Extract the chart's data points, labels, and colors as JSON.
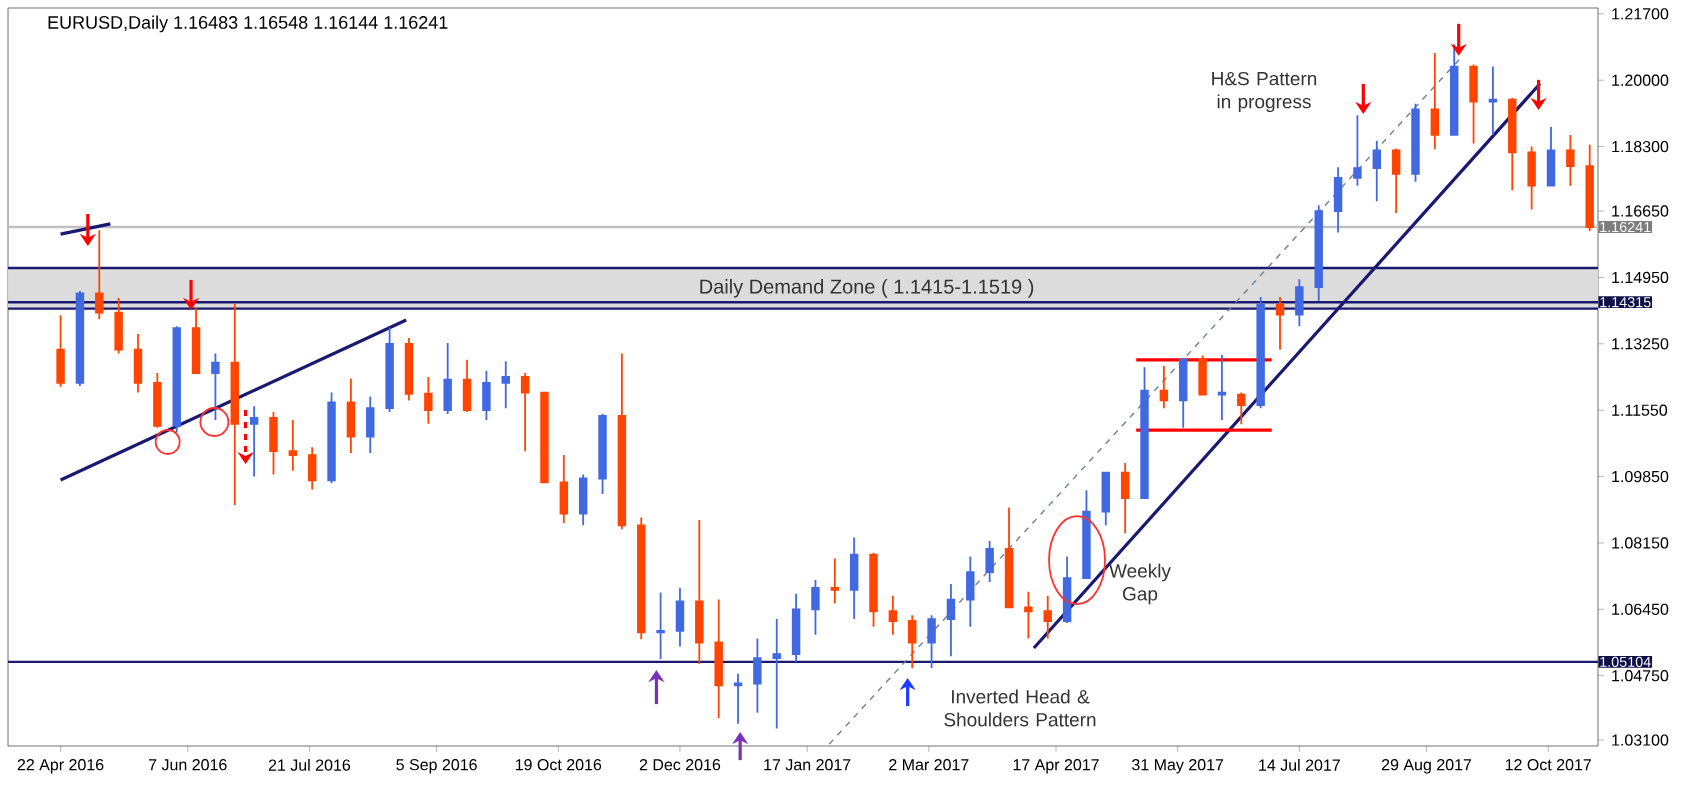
{
  "chart_data": {
    "type": "candlestick",
    "title": "EURUSD,Daily 1.16483 1.16548 1.16144 1.16241",
    "x": [
      "2016-04-22",
      "2016-04-29",
      "2016-05-06",
      "2016-05-13",
      "2016-05-20",
      "2016-05-27",
      "2016-06-03",
      "2016-06-10",
      "2016-06-17",
      "2016-06-24",
      "2016-07-01",
      "2016-07-08",
      "2016-07-15",
      "2016-07-22",
      "2016-07-29",
      "2016-08-05",
      "2016-08-12",
      "2016-08-19",
      "2016-08-26",
      "2016-09-02",
      "2016-09-09",
      "2016-09-16",
      "2016-09-23",
      "2016-09-30",
      "2016-10-07",
      "2016-10-14",
      "2016-10-21",
      "2016-10-28",
      "2016-11-04",
      "2016-11-11",
      "2016-11-18",
      "2016-11-25",
      "2016-12-02",
      "2016-12-09",
      "2016-12-16",
      "2016-12-23",
      "2016-12-30",
      "2017-01-06",
      "2017-01-13",
      "2017-01-20",
      "2017-01-27",
      "2017-02-03",
      "2017-02-10",
      "2017-02-17",
      "2017-02-24",
      "2017-03-03",
      "2017-03-10",
      "2017-03-17",
      "2017-03-24",
      "2017-03-31",
      "2017-04-07",
      "2017-04-14",
      "2017-04-21",
      "2017-04-28",
      "2017-05-05",
      "2017-05-12",
      "2017-05-19",
      "2017-05-26",
      "2017-06-02",
      "2017-06-09",
      "2017-06-16",
      "2017-06-23",
      "2017-06-30",
      "2017-07-07",
      "2017-07-14",
      "2017-07-21",
      "2017-07-28",
      "2017-08-04",
      "2017-08-11",
      "2017-08-18",
      "2017-08-25",
      "2017-09-01",
      "2017-09-08",
      "2017-09-15",
      "2017-09-22",
      "2017-09-29",
      "2017-10-06",
      "2017-10-13",
      "2017-10-20",
      "2017-10-27"
    ],
    "ohlc": [
      [
        1.131,
        1.1398,
        1.1215,
        1.1225
      ],
      [
        1.1225,
        1.146,
        1.1217,
        1.1454
      ],
      [
        1.1454,
        1.1616,
        1.1388,
        1.1405
      ],
      [
        1.1405,
        1.1442,
        1.13,
        1.131
      ],
      [
        1.131,
        1.135,
        1.12,
        1.1225
      ],
      [
        1.1225,
        1.125,
        1.111,
        1.1115
      ],
      [
        1.1115,
        1.137,
        1.1098,
        1.1365
      ],
      [
        1.1365,
        1.1416,
        1.125,
        1.125
      ],
      [
        1.125,
        1.13,
        1.113,
        1.1277
      ],
      [
        1.1277,
        1.1427,
        1.0912,
        1.112
      ],
      [
        1.112,
        1.1165,
        1.0985,
        1.1135
      ],
      [
        1.1135,
        1.115,
        1.099,
        1.105
      ],
      [
        1.105,
        1.113,
        1.1,
        1.104
      ],
      [
        1.104,
        1.106,
        1.0952,
        1.0975
      ],
      [
        1.0975,
        1.12,
        1.0968,
        1.1175
      ],
      [
        1.1175,
        1.1236,
        1.1045,
        1.1087
      ],
      [
        1.1087,
        1.119,
        1.1045,
        1.116
      ],
      [
        1.116,
        1.1366,
        1.115,
        1.1325
      ],
      [
        1.1325,
        1.134,
        1.118,
        1.1197
      ],
      [
        1.1197,
        1.124,
        1.112,
        1.1155
      ],
      [
        1.1155,
        1.1327,
        1.1145,
        1.1233
      ],
      [
        1.1233,
        1.1284,
        1.115,
        1.1155
      ],
      [
        1.1155,
        1.1256,
        1.113,
        1.1225
      ],
      [
        1.1225,
        1.128,
        1.116,
        1.124
      ],
      [
        1.124,
        1.125,
        1.105,
        1.12
      ],
      [
        1.12,
        1.12,
        1.097,
        1.097
      ],
      [
        1.097,
        1.104,
        1.0866,
        1.089
      ],
      [
        1.089,
        1.099,
        1.086,
        1.098
      ],
      [
        1.098,
        1.1146,
        1.094,
        1.114
      ],
      [
        1.114,
        1.13,
        1.085,
        1.086
      ],
      [
        1.086,
        1.088,
        1.0568,
        1.0586
      ],
      [
        1.0586,
        1.0688,
        1.0518,
        1.059
      ],
      [
        1.059,
        1.07,
        1.055,
        1.0665
      ],
      [
        1.0665,
        1.0874,
        1.0505,
        1.056
      ],
      [
        1.056,
        1.067,
        1.0366,
        1.045
      ],
      [
        1.045,
        1.048,
        1.0352,
        1.0455
      ],
      [
        1.0455,
        1.057,
        1.038,
        1.052
      ],
      [
        1.052,
        1.062,
        1.034,
        1.053
      ],
      [
        1.053,
        1.0685,
        1.051,
        1.0645
      ],
      [
        1.0645,
        1.072,
        1.058,
        1.07
      ],
      [
        1.07,
        1.0775,
        1.066,
        1.0695
      ],
      [
        1.0695,
        1.0829,
        1.062,
        1.0785
      ],
      [
        1.0785,
        1.079,
        1.06,
        1.064
      ],
      [
        1.064,
        1.068,
        1.058,
        1.0615
      ],
      [
        1.0615,
        1.063,
        1.0494,
        1.056
      ],
      [
        1.056,
        1.063,
        1.0495,
        1.062
      ],
      [
        1.062,
        1.071,
        1.0525,
        1.067
      ],
      [
        1.067,
        1.078,
        1.06,
        1.074
      ],
      [
        1.074,
        1.082,
        1.0715,
        1.08
      ],
      [
        1.08,
        1.0906,
        1.065,
        1.065
      ],
      [
        1.065,
        1.069,
        1.057,
        1.064
      ],
      [
        1.064,
        1.068,
        1.057,
        1.0615
      ],
      [
        1.0615,
        1.078,
        1.061,
        1.0725
      ],
      [
        1.0725,
        1.095,
        1.0725,
        1.0895
      ],
      [
        1.0895,
        1.0995,
        1.086,
        1.0995
      ],
      [
        1.0995,
        1.102,
        1.084,
        1.093
      ],
      [
        1.093,
        1.1265,
        1.093,
        1.1205
      ],
      [
        1.1205,
        1.1268,
        1.116,
        1.118
      ],
      [
        1.118,
        1.1285,
        1.111,
        1.1285
      ],
      [
        1.1285,
        1.1295,
        1.1195,
        1.1195
      ],
      [
        1.1195,
        1.1296,
        1.113,
        1.12
      ],
      [
        1.1195,
        1.12,
        1.1119,
        1.1168
      ],
      [
        1.1168,
        1.1445,
        1.116,
        1.1425
      ],
      [
        1.1425,
        1.1445,
        1.131,
        1.14
      ],
      [
        1.14,
        1.149,
        1.137,
        1.147
      ],
      [
        1.147,
        1.168,
        1.1435,
        1.1665
      ],
      [
        1.1665,
        1.1777,
        1.161,
        1.175
      ],
      [
        1.175,
        1.191,
        1.173,
        1.1775
      ],
      [
        1.1775,
        1.1845,
        1.169,
        1.182
      ],
      [
        1.182,
        1.1825,
        1.166,
        1.176
      ],
      [
        1.176,
        1.194,
        1.174,
        1.1925
      ],
      [
        1.1925,
        1.207,
        1.1823,
        1.186
      ],
      [
        1.186,
        1.2092,
        1.186,
        1.2035
      ],
      [
        1.2035,
        1.204,
        1.1838,
        1.1945
      ],
      [
        1.1945,
        1.2035,
        1.186,
        1.195
      ],
      [
        1.195,
        1.1955,
        1.1718,
        1.1815
      ],
      [
        1.1815,
        1.183,
        1.1669,
        1.173
      ],
      [
        1.173,
        1.188,
        1.173,
        1.182
      ],
      [
        1.182,
        1.186,
        1.173,
        1.178
      ],
      [
        1.178,
        1.1835,
        1.1614,
        1.1624
      ]
    ],
    "colors": [
      "#ff4500",
      "#4169e1",
      "#ff4500",
      "#ff4500",
      "#ff4500",
      "#ff4500",
      "#4169e1",
      "#ff4500",
      "#4169e1",
      "#ff4500",
      "#4169e1",
      "#ff4500",
      "#ff4500",
      "#ff4500",
      "#4169e1",
      "#ff4500",
      "#4169e1",
      "#4169e1",
      "#ff4500",
      "#ff4500",
      "#4169e1",
      "#ff4500",
      "#4169e1",
      "#4169e1",
      "#ff4500",
      "#ff4500",
      "#ff4500",
      "#4169e1",
      "#4169e1",
      "#ff4500",
      "#ff4500",
      "#4169e1",
      "#4169e1",
      "#ff4500",
      "#ff4500",
      "#4169e1",
      "#4169e1",
      "#4169e1",
      "#4169e1",
      "#4169e1",
      "#ff4500",
      "#4169e1",
      "#ff4500",
      "#ff4500",
      "#ff4500",
      "#4169e1",
      "#4169e1",
      "#4169e1",
      "#4169e1",
      "#ff4500",
      "#ff4500",
      "#ff4500",
      "#4169e1",
      "#4169e1",
      "#4169e1",
      "#ff4500",
      "#4169e1",
      "#ff4500",
      "#4169e1",
      "#ff4500",
      "#4169e1",
      "#ff4500",
      "#4169e1",
      "#ff4500",
      "#4169e1",
      "#4169e1",
      "#4169e1",
      "#4169e1",
      "#4169e1",
      "#ff4500",
      "#4169e1",
      "#ff4500",
      "#4169e1",
      "#ff4500",
      "#4169e1",
      "#ff4500",
      "#ff4500",
      "#4169e1",
      "#ff4500",
      "#ff4500"
    ],
    "series": [
      {
        "type": "line",
        "color": "#191970",
        "x": [
          "2016-04-22",
          "2016-05-10"
        ],
        "values": [
          1.1606,
          1.1632
        ]
      },
      {
        "type": "line",
        "color": "#191970",
        "x": [
          "2016-04-22",
          "2016-08-25"
        ],
        "values": [
          1.0976,
          1.1386
        ]
      },
      {
        "type": "line",
        "color": "#191970",
        "x": [
          "2017-04-09",
          "2017-10-09"
        ],
        "values": [
          1.0546,
          1.1991
        ]
      },
      {
        "type": "line",
        "color": "#708090",
        "line_style": "dashed",
        "x": [
          "2017-01-25",
          "2017-09-11"
        ],
        "values": [
          1.03,
          1.2062
        ]
      },
      {
        "type": "line",
        "color": "#ff0000",
        "x": [
          "2017-05-16",
          "2017-07-04"
        ],
        "values": [
          1.1284,
          1.1284
        ]
      },
      {
        "type": "line",
        "color": "#ff0000",
        "x": [
          "2017-05-16",
          "2017-07-04"
        ],
        "values": [
          1.1104,
          1.1104
        ]
      }
    ],
    "bands": [
      {
        "axis": "y",
        "from": 1.1415,
        "to": 1.1519,
        "label": "Daily Demand Zone ( 1.1415-1.1519 )",
        "color": "#dcdcdc"
      }
    ],
    "ref_lines": [
      {
        "axis": "y",
        "value": 1.16241,
        "label": "1.16241",
        "color": "#c0c0c0"
      },
      {
        "axis": "y",
        "value": 1.14315,
        "label": "1.14315",
        "color": "#191970"
      },
      {
        "axis": "y",
        "value": 1.05104,
        "label": "1.05104",
        "color": "#191970"
      },
      {
        "axis": "y",
        "value": 1.1519,
        "color": "#191970"
      },
      {
        "axis": "y",
        "value": 1.1415,
        "color": "#191970"
      }
    ],
    "annotations": [
      "H&S Pattern in progress",
      "Weekly Gap",
      "Inverted Head & Shoulders Pattern"
    ],
    "xlim": [
      "2016-04-03",
      "2017-10-30"
    ],
    "ylim": [
      1.0295,
      1.2185
    ],
    "xticks": [
      {
        "value": "2016-04-22",
        "label": "22 Apr 2016"
      },
      {
        "value": "2016-06-07",
        "label": "7 Jun 2016"
      },
      {
        "value": "2016-07-21",
        "label": "21 Jul 2016"
      },
      {
        "value": "2016-09-05",
        "label": "5 Sep 2016"
      },
      {
        "value": "2016-10-19",
        "label": "19 Oct 2016"
      },
      {
        "value": "2016-12-02",
        "label": "2 Dec 2016"
      },
      {
        "value": "2017-01-17",
        "label": "17 Jan 2017"
      },
      {
        "value": "2017-03-02",
        "label": "2 Mar 2017"
      },
      {
        "value": "2017-04-17",
        "label": "17 Apr 2017"
      },
      {
        "value": "2017-05-31",
        "label": "31 May 2017"
      },
      {
        "value": "2017-07-14",
        "label": "14 Jul 2017"
      },
      {
        "value": "2017-08-29",
        "label": "29 Aug 2017"
      },
      {
        "value": "2017-10-12",
        "label": "12 Oct 2017"
      }
    ],
    "yticks": [
      {
        "value": 1.031,
        "label": "1.03100"
      },
      {
        "value": 1.0475,
        "label": "1.04750"
      },
      {
        "value": 1.0645,
        "label": "1.06450"
      },
      {
        "value": 1.0815,
        "label": "1.08150"
      },
      {
        "value": 1.0985,
        "label": "1.09850"
      },
      {
        "value": 1.1155,
        "label": "1.11550"
      },
      {
        "value": 1.1325,
        "label": "1.13250"
      },
      {
        "value": 1.1495,
        "label": "1.14950"
      },
      {
        "value": 1.1665,
        "label": "1.16650"
      },
      {
        "value": 1.183,
        "label": "1.18300"
      },
      {
        "value": 1.2,
        "label": "1.20000"
      },
      {
        "value": 1.217,
        "label": "1.21700"
      }
    ]
  }
}
